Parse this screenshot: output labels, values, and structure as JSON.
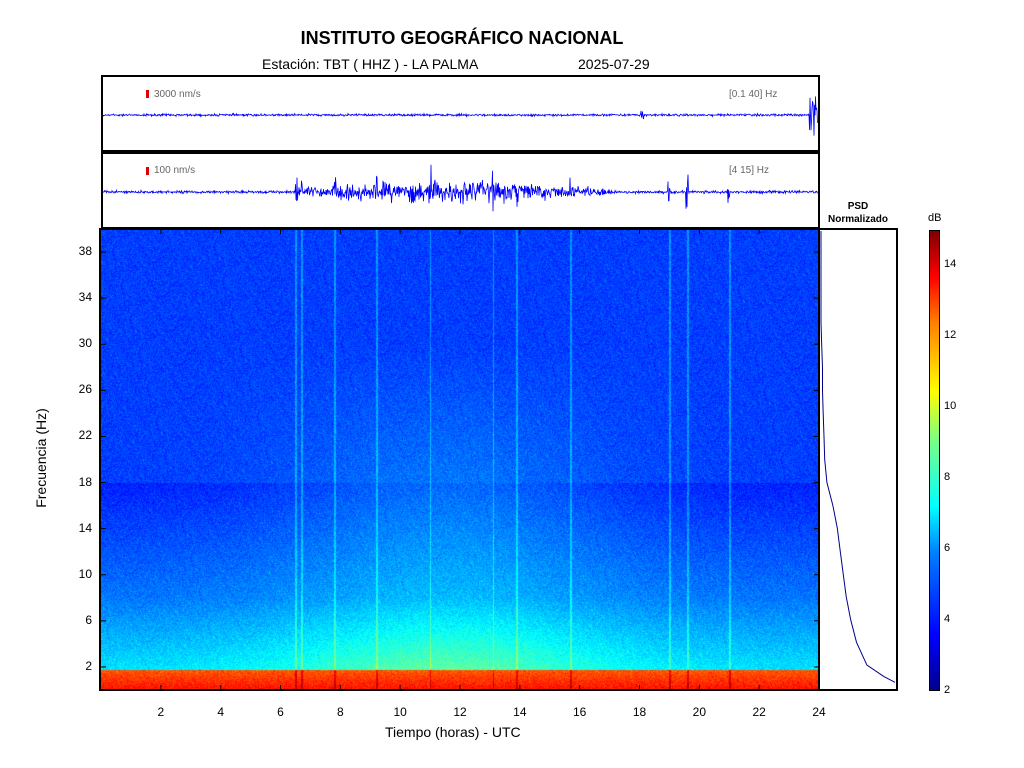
{
  "header": {
    "title": "INSTITUTO GEOGRÁFICO NACIONAL",
    "station": "Estación:  TBT ( HHZ ) - LA PALMA",
    "date": "2025-07-29"
  },
  "trace1": {
    "scale_label": "3000 nm/s",
    "band_label": "[0.1 40] Hz",
    "color": "#0000ff"
  },
  "trace2": {
    "scale_label": "100 nm/s",
    "band_label": "[4 15] Hz",
    "color": "#0000ff"
  },
  "psd": {
    "title_line1": "PSD",
    "title_line2": "Normalizado",
    "color": "#00008b"
  },
  "colorbar": {
    "unit": "dB"
  },
  "chart_data": {
    "type": "heatmap",
    "title": "INSTITUTO GEOGRÁFICO NACIONAL",
    "xlabel": "Tiempo (horas) - UTC",
    "ylabel": "Frecuencia  (Hz)",
    "xlim": [
      0,
      24
    ],
    "ylim": [
      0,
      40
    ],
    "x_ticks": [
      2,
      4,
      6,
      8,
      10,
      12,
      14,
      16,
      18,
      20,
      22,
      24
    ],
    "y_ticks": [
      2,
      6,
      10,
      14,
      18,
      22,
      26,
      30,
      34,
      38
    ],
    "colorbar_ticks": [
      2,
      4,
      6,
      8,
      10,
      12,
      14
    ],
    "colorbar_range": [
      2,
      15
    ],
    "colorscale": "jet",
    "approx_level_db": {
      "note_free": [],
      "low_freq_0_2hz": 12,
      "freq_2_18hz_day": 6,
      "freq_2_18hz_night": 5,
      "freq_18_40hz": 3.5
    },
    "transient_times_h": [
      6.5,
      6.7,
      7.8,
      9.2,
      11.0,
      13.1,
      13.9,
      15.7,
      19.0,
      19.6,
      21.0
    ],
    "psd_normalized": {
      "freq": [
        40,
        36,
        32,
        30,
        28,
        26,
        24,
        22,
        20,
        18,
        16,
        14,
        12,
        10,
        8,
        6,
        4,
        2,
        1,
        0.5
      ],
      "value": [
        0.0,
        0.0,
        0.0,
        0.01,
        0.02,
        0.02,
        0.03,
        0.04,
        0.05,
        0.08,
        0.16,
        0.22,
        0.26,
        0.3,
        0.34,
        0.4,
        0.48,
        0.62,
        0.85,
        1.0
      ]
    }
  }
}
